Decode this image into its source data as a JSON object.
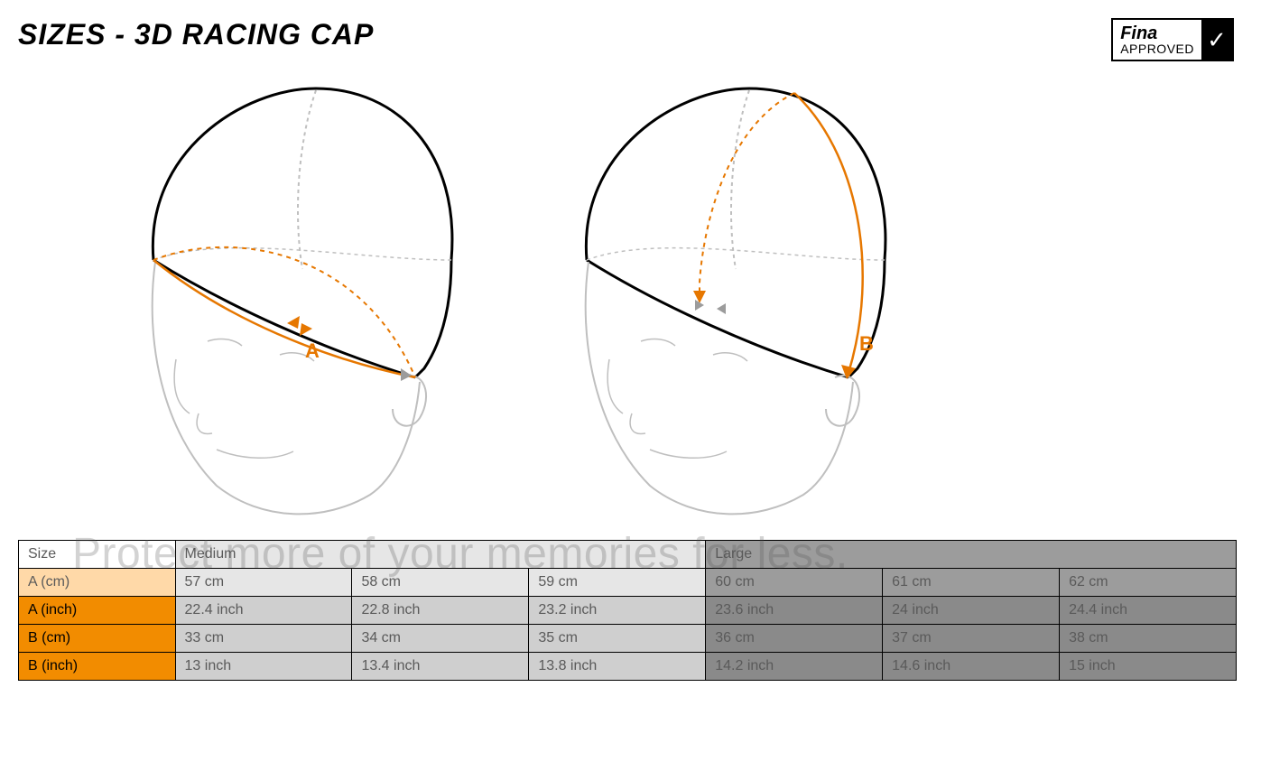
{
  "title": "SIZES - 3D RACING CAP",
  "badge": {
    "top": "Fina",
    "bottom": "APPROVED",
    "check": "✓"
  },
  "diagram": {
    "labelA": "A",
    "labelB": "B",
    "outline_color": "#000000",
    "outline_light": "#bfbfbf",
    "measure_color": "#e67700"
  },
  "ghost_text": "Protect more of your memories for less.",
  "table": {
    "columns": {
      "size": "Size",
      "medium": "Medium",
      "large": "Large"
    },
    "rows": [
      {
        "label": "A (cm)",
        "style": "light",
        "medium": [
          "57 cm",
          "58 cm",
          "59 cm"
        ],
        "large": [
          "60 cm",
          "61 cm",
          "62 cm"
        ]
      },
      {
        "label": "A (inch)",
        "style": "dark",
        "medium": [
          "22.4 inch",
          "22.8 inch",
          "23.2 inch"
        ],
        "large": [
          "23.6 inch",
          "24 inch",
          "24.4 inch"
        ]
      },
      {
        "label": "B (cm)",
        "style": "dark",
        "medium": [
          "33 cm",
          "34 cm",
          "35 cm"
        ],
        "large": [
          "36 cm",
          "37 cm",
          "38 cm"
        ]
      },
      {
        "label": "B (inch)",
        "style": "dark",
        "medium": [
          "13 inch",
          "13.4 inch",
          "13.8 inch"
        ],
        "large": [
          "14.2 inch",
          "14.6 inch",
          "15 inch"
        ]
      }
    ],
    "colors": {
      "rowlabel_light": "#ffd9a8",
      "rowlabel_dark": "#f28c00",
      "med_light": "#e6e6e6",
      "med_dark": "#cfcfcf",
      "lrg_light": "#9c9c9c",
      "lrg_dark": "#8a8a8a",
      "border": "#000000",
      "text": "#5a5a5a"
    }
  }
}
